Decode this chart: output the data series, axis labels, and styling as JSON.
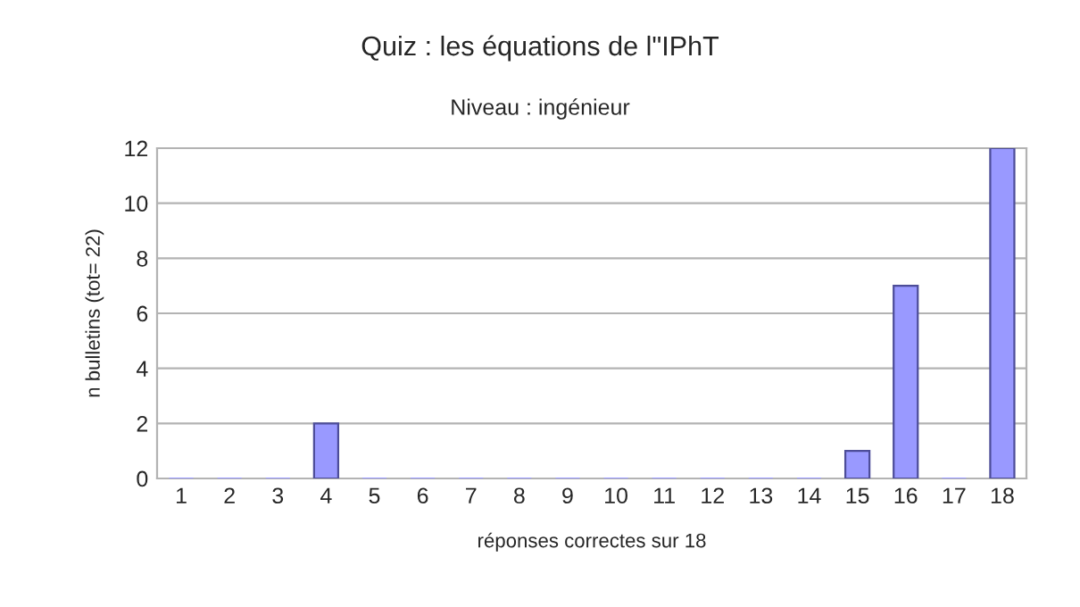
{
  "chart_data": {
    "type": "bar",
    "title": "Quiz : les équations de l\"IPhT",
    "subtitle": "Niveau : ingénieur",
    "xlabel": "réponses correctes sur 18",
    "ylabel": "n bulletins (tot= 22)",
    "categories": [
      "1",
      "2",
      "3",
      "4",
      "5",
      "6",
      "7",
      "8",
      "9",
      "10",
      "11",
      "12",
      "13",
      "14",
      "15",
      "16",
      "17",
      "18"
    ],
    "values": [
      0,
      0,
      0,
      2,
      0,
      0,
      0,
      0,
      0,
      0,
      0,
      0,
      0,
      0,
      1,
      7,
      0,
      12
    ],
    "color": "#9999ff",
    "ylim": [
      0,
      12
    ],
    "yticks": [
      0,
      2,
      4,
      6,
      8,
      10,
      12
    ],
    "grid": "y",
    "legend": false
  }
}
